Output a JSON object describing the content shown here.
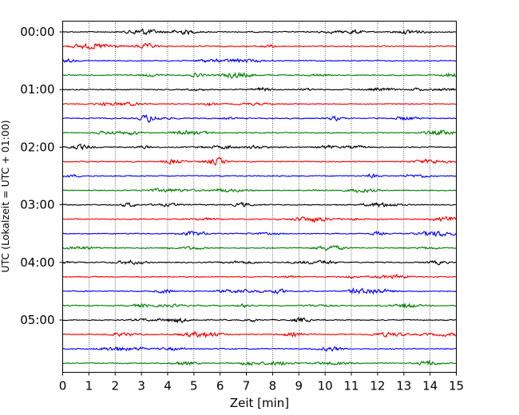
{
  "chart_data": {
    "type": "line",
    "title": "",
    "xlabel": "Zeit  [min]",
    "ylabel": "UTC (Lokalzeit = UTC + 01:00)",
    "xlim": [
      0,
      15
    ],
    "x_ticks": [
      "0",
      "1",
      "2",
      "3",
      "4",
      "5",
      "6",
      "7",
      "8",
      "9",
      "10",
      "11",
      "12",
      "13",
      "14",
      "15"
    ],
    "y_tick_labels": [
      "00:00",
      "01:00",
      "02:00",
      "03:00",
      "04:00",
      "05:00"
    ],
    "rows_per_hour": 4,
    "row_minutes": 15,
    "row_count": 24,
    "trace_colors": [
      "#000000",
      "#ff0000",
      "#0000ff",
      "#008000"
    ],
    "vertical_grid": "dotted, every 1 min",
    "legend": "none"
  }
}
